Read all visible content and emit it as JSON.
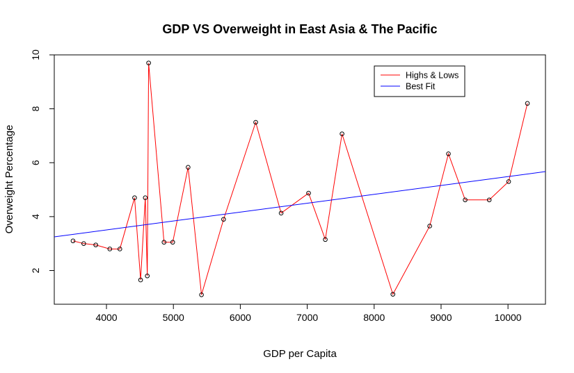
{
  "chart_data": {
    "type": "line",
    "title": "GDP VS Overweight in East Asia & The Pacific",
    "xlabel": "GDP per Capita",
    "ylabel": "Overweight Percentage",
    "xlim": [
      3220,
      10560
    ],
    "ylim": [
      0.75,
      10.0
    ],
    "xticks": [
      4000,
      5000,
      6000,
      7000,
      8000,
      9000,
      10000
    ],
    "yticks": [
      2,
      4,
      6,
      8,
      10
    ],
    "grid": false,
    "legend_position": "top-right",
    "series": [
      {
        "name": "Highs & Lows",
        "color": "#ff0000",
        "marker": "open-circle",
        "x": [
          3500,
          3660,
          3840,
          4050,
          4200,
          4420,
          4510,
          4580,
          4610,
          4630,
          4860,
          4990,
          5220,
          5420,
          5750,
          6230,
          6610,
          7020,
          7270,
          7520,
          8280,
          8830,
          9110,
          9360,
          9720,
          10010,
          10290
        ],
        "y": [
          3.1,
          3.0,
          2.95,
          2.8,
          2.8,
          4.7,
          1.65,
          4.7,
          1.8,
          9.7,
          3.05,
          3.05,
          5.83,
          1.1,
          3.9,
          7.5,
          4.13,
          4.87,
          3.15,
          7.07,
          1.12,
          3.65,
          6.33,
          4.62,
          4.62,
          5.3,
          8.2
        ]
      },
      {
        "name": "Best Fit",
        "color": "#0000ff",
        "marker": "none",
        "x": [
          3220,
          10560
        ],
        "y": [
          3.25,
          5.67
        ]
      }
    ]
  }
}
